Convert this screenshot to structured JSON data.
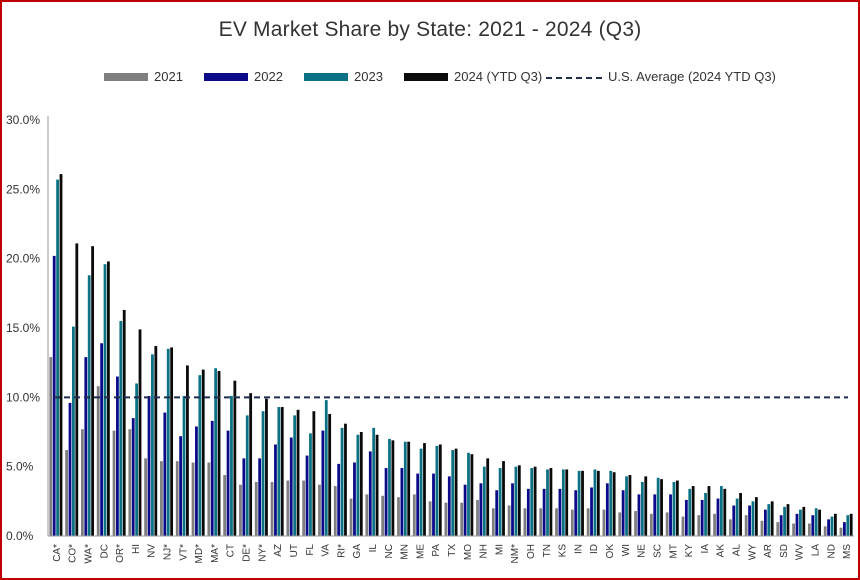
{
  "chart_data": {
    "type": "bar",
    "title": "EV Market Share by State: 2021 - 2024 (Q3)",
    "xlabel": "",
    "ylabel": "",
    "ylim": [
      0,
      30
    ],
    "y_ticks": [
      "0.0%",
      "5.0%",
      "10.0%",
      "15.0%",
      "20.0%",
      "25.0%",
      "30.0%"
    ],
    "y_tick_values": [
      0,
      5,
      10,
      15,
      20,
      25,
      30
    ],
    "categories": [
      "CA*",
      "CO*",
      "WA*",
      "DC",
      "OR*",
      "HI",
      "NV",
      "NJ*",
      "VT*",
      "MD*",
      "MA*",
      "CT",
      "DE*",
      "NY*",
      "AZ",
      "UT",
      "FL",
      "VA",
      "RI*",
      "GA",
      "IL",
      "NC",
      "MN",
      "ME",
      "PA",
      "TX",
      "MO",
      "NH",
      "MI",
      "NM*",
      "OH",
      "TN",
      "KS",
      "IN",
      "ID",
      "OK",
      "WI",
      "NE",
      "SC",
      "MT",
      "KY",
      "IA",
      "AK",
      "AL",
      "WY",
      "AR",
      "SD",
      "WV",
      "LA",
      "ND",
      "MS"
    ],
    "series": [
      {
        "name": "2021",
        "color": "#7f7f7f",
        "values": [
          12.9,
          6.2,
          7.7,
          10.8,
          7.6,
          7.7,
          5.6,
          5.4,
          5.4,
          5.3,
          5.3,
          4.4,
          3.7,
          3.9,
          3.9,
          4.0,
          4.0,
          3.7,
          3.6,
          2.7,
          3.0,
          2.9,
          2.8,
          3.0,
          2.5,
          2.4,
          2.4,
          2.6,
          2.0,
          2.2,
          2.0,
          2.0,
          2.0,
          1.9,
          2.0,
          1.9,
          1.7,
          1.8,
          1.6,
          1.7,
          1.4,
          1.5,
          1.6,
          1.2,
          1.5,
          1.1,
          1.0,
          0.9,
          0.9,
          0.7,
          0.6
        ]
      },
      {
        "name": "2022",
        "color": "#0b0b8a",
        "values": [
          20.2,
          9.6,
          12.9,
          13.9,
          11.5,
          8.5,
          10.1,
          8.9,
          7.2,
          7.9,
          8.3,
          7.6,
          5.6,
          5.6,
          6.6,
          7.1,
          5.8,
          7.6,
          5.2,
          5.3,
          6.1,
          4.9,
          4.9,
          4.5,
          4.5,
          4.3,
          3.7,
          3.8,
          3.3,
          3.8,
          3.4,
          3.4,
          3.4,
          3.3,
          3.5,
          3.8,
          3.3,
          3.0,
          3.0,
          3.0,
          2.6,
          2.6,
          2.7,
          2.2,
          2.2,
          1.9,
          1.5,
          1.6,
          1.5,
          1.2,
          1.0
        ]
      },
      {
        "name": "2023",
        "color": "#0b7285",
        "values": [
          25.7,
          15.1,
          18.8,
          19.6,
          15.5,
          11.0,
          13.1,
          13.5,
          10.1,
          11.6,
          12.1,
          10.1,
          8.7,
          9.0,
          9.3,
          8.7,
          7.4,
          9.8,
          7.8,
          7.3,
          7.8,
          7.0,
          6.8,
          6.3,
          6.5,
          6.2,
          6.0,
          5.0,
          4.9,
          5.0,
          4.9,
          4.8,
          4.8,
          4.7,
          4.8,
          4.7,
          4.3,
          3.9,
          4.2,
          3.9,
          3.4,
          3.1,
          3.6,
          2.7,
          2.5,
          2.3,
          2.1,
          1.9,
          2.0,
          1.4,
          1.5
        ]
      },
      {
        "name": "2024 (YTD Q3)",
        "color": "#0a0a0a",
        "values": [
          26.1,
          21.1,
          20.9,
          19.8,
          16.3,
          14.9,
          13.7,
          13.6,
          12.3,
          12.0,
          11.9,
          11.2,
          10.3,
          9.9,
          9.3,
          9.1,
          9.0,
          8.8,
          8.1,
          7.5,
          7.3,
          6.9,
          6.8,
          6.7,
          6.6,
          6.3,
          5.9,
          5.6,
          5.4,
          5.1,
          5.0,
          4.9,
          4.8,
          4.7,
          4.7,
          4.6,
          4.4,
          4.3,
          4.1,
          4.0,
          3.6,
          3.6,
          3.4,
          3.1,
          2.8,
          2.5,
          2.3,
          2.1,
          1.9,
          1.6,
          1.6
        ]
      }
    ],
    "reference_line": {
      "name": "U.S. Average (2024 YTD Q3)",
      "value": 10.0,
      "color": "#1f2d4e",
      "style": "dashed"
    },
    "grid": false,
    "legend_position": "top"
  }
}
